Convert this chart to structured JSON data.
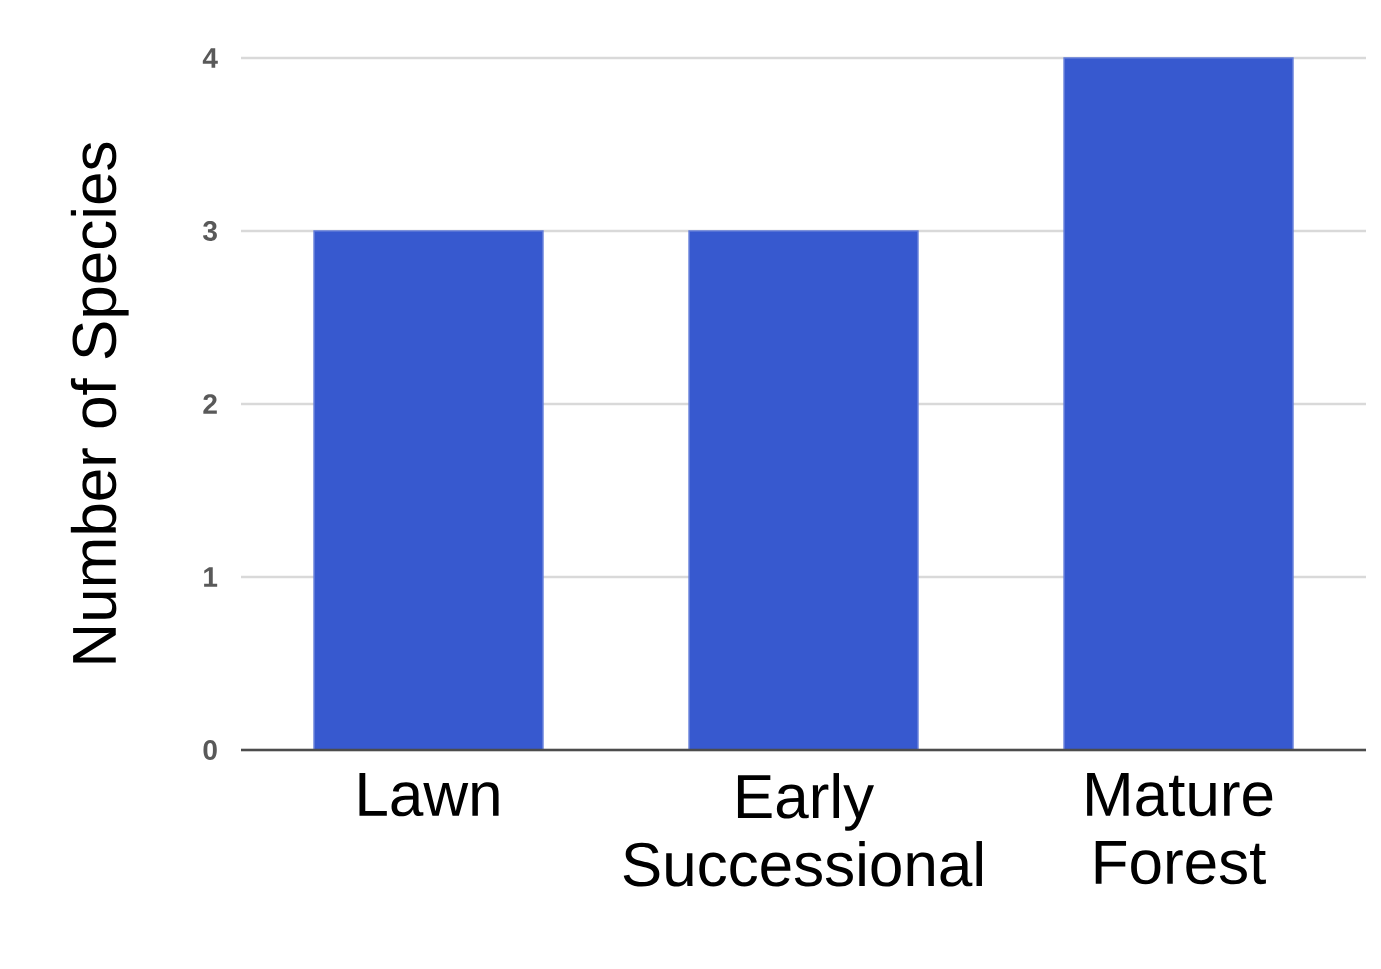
{
  "chart_data": {
    "type": "bar",
    "ylabel": "Number of Species",
    "categories": [
      "Lawn",
      "Early Successional",
      "Mature Forest"
    ],
    "values": [
      3,
      3,
      4
    ],
    "color": "#3759cf",
    "ylim": [
      0,
      4
    ],
    "yticks": [
      0,
      1,
      2,
      3,
      4
    ],
    "grid": "y"
  }
}
